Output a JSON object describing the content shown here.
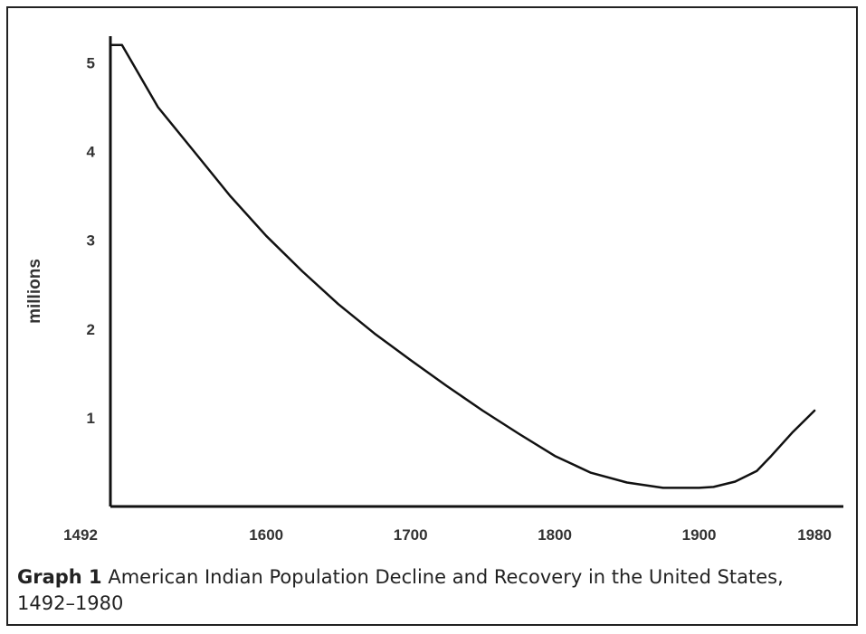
{
  "chart_data": {
    "type": "line",
    "title": "",
    "xlabel": "",
    "ylabel": "millions",
    "xlim": [
      1492,
      2000
    ],
    "ylim": [
      0,
      5.3
    ],
    "x_ticks": [
      {
        "value": 1492,
        "label": "1492"
      },
      {
        "value": 1600,
        "label": "1600"
      },
      {
        "value": 1700,
        "label": "1700"
      },
      {
        "value": 1800,
        "label": "1800"
      },
      {
        "value": 1900,
        "label": "1900"
      },
      {
        "value": 1980,
        "label": "1980"
      }
    ],
    "y_ticks": [
      {
        "value": 1,
        "label": "1"
      },
      {
        "value": 2,
        "label": "2"
      },
      {
        "value": 3,
        "label": "3"
      },
      {
        "value": 4,
        "label": "4"
      },
      {
        "value": 5,
        "label": "5"
      }
    ],
    "grid": false,
    "series": [
      {
        "x": [
          1492,
          1500,
          1525,
          1550,
          1575,
          1600,
          1625,
          1650,
          1675,
          1700,
          1725,
          1750,
          1775,
          1800,
          1825,
          1850,
          1875,
          1900,
          1910,
          1925,
          1940,
          1950,
          1965,
          1980
        ],
        "y": [
          5.2,
          5.2,
          4.5,
          4.0,
          3.5,
          3.05,
          2.65,
          2.28,
          1.95,
          1.65,
          1.36,
          1.08,
          0.82,
          0.57,
          0.38,
          0.27,
          0.21,
          0.21,
          0.22,
          0.28,
          0.4,
          0.57,
          0.84,
          1.08
        ]
      }
    ]
  },
  "caption": {
    "label": "Graph 1",
    "text": "American Indian Population Decline and Recovery in the United States, 1492–1980"
  }
}
